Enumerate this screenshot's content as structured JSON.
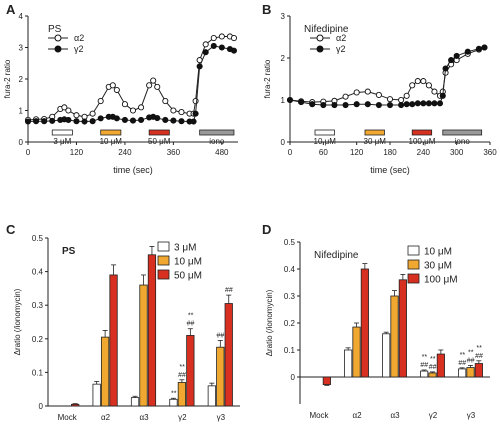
{
  "chart_data": [
    {
      "panel": "A",
      "type": "line",
      "title": "PS",
      "xlabel": "time (sec)",
      "ylabel": "fura-2 ratio",
      "xlim": [
        0,
        520
      ],
      "ylim": [
        0,
        4
      ],
      "xticks": [
        "0",
        "120",
        "240",
        "360",
        "480"
      ],
      "yticks": [
        "0",
        "1",
        "2",
        "3",
        "4"
      ],
      "legend_position": "top-left",
      "series": [
        {
          "name": "α2",
          "marker": "open-circle",
          "x": [
            0,
            20,
            40,
            60,
            80,
            90,
            100,
            120,
            140,
            160,
            180,
            200,
            210,
            220,
            240,
            260,
            280,
            300,
            310,
            320,
            340,
            360,
            380,
            400,
            410,
            415,
            425,
            440,
            460,
            480,
            500,
            510
          ],
          "y": [
            0.7,
            0.72,
            0.73,
            0.8,
            1.05,
            1.1,
            1.0,
            0.85,
            0.8,
            0.9,
            1.3,
            1.75,
            1.8,
            1.65,
            1.2,
            1.0,
            1.1,
            1.8,
            1.95,
            1.75,
            1.3,
            1.0,
            0.95,
            0.9,
            0.9,
            1.3,
            2.6,
            3.1,
            3.3,
            3.35,
            3.35,
            3.3
          ]
        },
        {
          "name": "γ2",
          "marker": "filled-circle",
          "x": [
            0,
            20,
            40,
            60,
            80,
            90,
            100,
            120,
            140,
            160,
            180,
            200,
            210,
            220,
            240,
            260,
            280,
            300,
            310,
            320,
            340,
            360,
            380,
            400,
            410,
            415,
            425,
            440,
            460,
            480,
            500,
            510
          ],
          "y": [
            0.65,
            0.66,
            0.66,
            0.67,
            0.7,
            0.72,
            0.7,
            0.66,
            0.65,
            0.66,
            0.75,
            0.8,
            0.8,
            0.75,
            0.7,
            0.68,
            0.7,
            0.78,
            0.8,
            0.76,
            0.7,
            0.68,
            0.66,
            0.65,
            0.65,
            0.9,
            2.4,
            2.85,
            3.05,
            3.0,
            2.95,
            2.9
          ]
        }
      ],
      "stimuli": [
        {
          "label": "3 μM",
          "color": "#ffffff",
          "x_start": 60,
          "x_end": 110
        },
        {
          "label": "10 μM",
          "color": "#f0a830",
          "x_start": 180,
          "x_end": 230
        },
        {
          "label": "50 μM",
          "color": "#d83020",
          "x_start": 300,
          "x_end": 350
        },
        {
          "label": "iono",
          "color": "#999999",
          "x_start": 425,
          "x_end": 510
        }
      ]
    },
    {
      "panel": "B",
      "type": "line",
      "title": "Nifedipine",
      "xlabel": "time (sec)",
      "ylabel": "fura-2 ratio",
      "xlim": [
        0,
        360
      ],
      "ylim": [
        0,
        3
      ],
      "xticks": [
        "0",
        "60",
        "120",
        "180",
        "240",
        "300",
        "360"
      ],
      "yticks": [
        "0",
        "1",
        "2",
        "3"
      ],
      "legend_position": "top-left",
      "series": [
        {
          "name": "α2",
          "marker": "open-circle",
          "x": [
            0,
            20,
            40,
            60,
            80,
            100,
            120,
            140,
            160,
            180,
            200,
            210,
            220,
            230,
            240,
            250,
            260,
            270,
            275,
            280,
            290,
            300,
            320,
            340,
            350
          ],
          "y": [
            1.0,
            0.97,
            0.95,
            0.96,
            0.98,
            1.08,
            1.18,
            1.2,
            1.12,
            1.02,
            1.0,
            1.1,
            1.35,
            1.45,
            1.45,
            1.35,
            1.2,
            1.1,
            1.2,
            1.65,
            1.85,
            1.95,
            2.1,
            2.2,
            2.25
          ]
        },
        {
          "name": "γ2",
          "marker": "filled-circle",
          "x": [
            0,
            20,
            40,
            60,
            80,
            100,
            120,
            140,
            160,
            180,
            200,
            210,
            220,
            230,
            240,
            250,
            260,
            270,
            275,
            280,
            290,
            300,
            320,
            340,
            350
          ],
          "y": [
            1.0,
            0.95,
            0.9,
            0.88,
            0.88,
            0.88,
            0.9,
            0.9,
            0.88,
            0.88,
            0.88,
            0.9,
            0.9,
            0.92,
            0.92,
            0.92,
            0.92,
            0.92,
            1.1,
            1.75,
            1.95,
            2.05,
            2.15,
            2.22,
            2.25
          ]
        }
      ],
      "stimuli": [
        {
          "label": "10 μM",
          "color": "#ffffff",
          "x_start": 45,
          "x_end": 80
        },
        {
          "label": "30 μM",
          "color": "#f0a830",
          "x_start": 135,
          "x_end": 170
        },
        {
          "label": "100 μM",
          "color": "#d83020",
          "x_start": 220,
          "x_end": 255
        },
        {
          "label": "iono",
          "color": "#999999",
          "x_start": 275,
          "x_end": 345
        }
      ]
    },
    {
      "panel": "C",
      "type": "bar",
      "title": "PS",
      "ylabel": "Δratio (/ionomycin)",
      "categories": [
        "Mock",
        "α2",
        "α3",
        "γ2",
        "γ3"
      ],
      "ylim": [
        0,
        0.5
      ],
      "yticks": [
        "0",
        "0.1",
        "0.2",
        "0.3",
        "0.4",
        "0.5"
      ],
      "legend_position": "top-right",
      "series": [
        {
          "name": "3 μM",
          "color": "#ffffff",
          "values": [
            0.0,
            0.065,
            0.025,
            0.02,
            0.06
          ],
          "errors": [
            0,
            0.008,
            0.004,
            0.003,
            0.008
          ],
          "annotations": [
            "",
            "",
            "",
            "**",
            ""
          ]
        },
        {
          "name": "10 μM",
          "color": "#f0a830",
          "values": [
            0.0,
            0.205,
            0.36,
            0.07,
            0.175
          ],
          "errors": [
            0,
            0.02,
            0.03,
            0.008,
            0.02
          ],
          "annotations": [
            "",
            "",
            "",
            "**\n##",
            "##"
          ]
        },
        {
          "name": "50 μM",
          "color": "#d83020",
          "values": [
            0.005,
            0.39,
            0.45,
            0.21,
            0.305
          ],
          "errors": [
            0.002,
            0.03,
            0.025,
            0.02,
            0.025
          ],
          "annotations": [
            "",
            "",
            "",
            "**\n##",
            "##"
          ]
        }
      ]
    },
    {
      "panel": "D",
      "type": "bar",
      "title": "Nifedipine",
      "ylabel": "Δratio (/ionomycin)",
      "categories": [
        "Mock",
        "α2",
        "α3",
        "γ2",
        "γ3"
      ],
      "ylim": [
        -0.1,
        0.5
      ],
      "yticks": [
        "0",
        "0.1",
        "0.2",
        "0.3",
        "0.4",
        "0.5"
      ],
      "legend_position": "top-right",
      "series": [
        {
          "name": "10 μM",
          "color": "#ffffff",
          "values": [
            0.0,
            0.1,
            0.16,
            0.022,
            0.03
          ],
          "errors": [
            0,
            0.008,
            0.006,
            0.004,
            0.004
          ],
          "annotations": [
            "",
            "",
            "",
            "**\n##",
            "**\n##"
          ]
        },
        {
          "name": "30 μM",
          "color": "#f0a830",
          "values": [
            0.0,
            0.185,
            0.3,
            0.015,
            0.035
          ],
          "errors": [
            0,
            0.015,
            0.02,
            0.004,
            0.008
          ],
          "annotations": [
            "",
            "",
            "",
            "**\n##",
            "**\n##"
          ]
        },
        {
          "name": "100 μM",
          "color": "#d83020",
          "values": [
            -0.028,
            0.4,
            0.36,
            0.085,
            0.05
          ],
          "errors": [
            0.003,
            0.02,
            0.02,
            0.015,
            0.01
          ],
          "annotations": [
            "",
            "",
            "",
            "",
            "**\n##"
          ]
        }
      ]
    }
  ],
  "panel_letters": [
    "A",
    "B",
    "C",
    "D"
  ]
}
